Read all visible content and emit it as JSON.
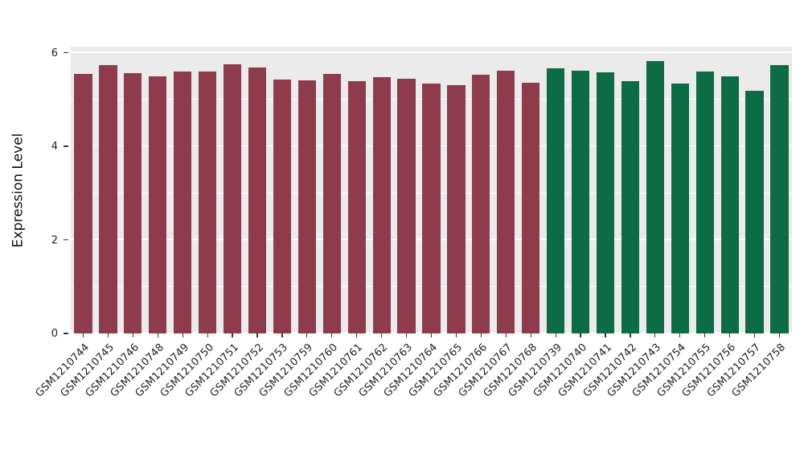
{
  "chart_data": {
    "type": "bar",
    "title": "",
    "xlabel": "",
    "ylabel": "Expression Level",
    "categories": [
      "GSM1210744",
      "GSM1210745",
      "GSM1210746",
      "GSM1210748",
      "GSM1210749",
      "GSM1210750",
      "GSM1210751",
      "GSM1210752",
      "GSM1210753",
      "GSM1210759",
      "GSM1210760",
      "GSM1210761",
      "GSM1210762",
      "GSM1210763",
      "GSM1210764",
      "GSM1210765",
      "GSM1210766",
      "GSM1210767",
      "GSM1210768",
      "GSM1210739",
      "GSM1210740",
      "GSM1210741",
      "GSM1210742",
      "GSM1210743",
      "GSM1210754",
      "GSM1210755",
      "GSM1210756",
      "GSM1210757",
      "GSM1210758"
    ],
    "values": [
      5.55,
      5.73,
      5.56,
      5.5,
      5.6,
      5.59,
      5.75,
      5.69,
      5.43,
      5.41,
      5.54,
      5.39,
      5.47,
      5.45,
      5.34,
      5.31,
      5.53,
      5.61,
      5.35,
      5.66,
      5.61,
      5.58,
      5.39,
      5.82,
      5.34,
      5.59,
      5.5,
      5.19,
      5.73
    ],
    "groups": [
      "group1",
      "group1",
      "group1",
      "group1",
      "group1",
      "group1",
      "group1",
      "group1",
      "group1",
      "group1",
      "group1",
      "group1",
      "group1",
      "group1",
      "group1",
      "group1",
      "group1",
      "group1",
      "group1",
      "group2",
      "group2",
      "group2",
      "group2",
      "group2",
      "group2",
      "group2",
      "group2",
      "group2",
      "group2"
    ],
    "group_colors": {
      "group1": "#8E3B4C",
      "group2": "#0D6B45"
    },
    "ylim": [
      0,
      6.13
    ],
    "yticks": [
      0,
      2,
      4,
      6
    ],
    "yminor": [
      1,
      3,
      5
    ],
    "panel_bg": "#EBEBEB",
    "grid_color": "#FFFFFF",
    "legend_position": "none",
    "bar_width_fraction": 0.72
  }
}
